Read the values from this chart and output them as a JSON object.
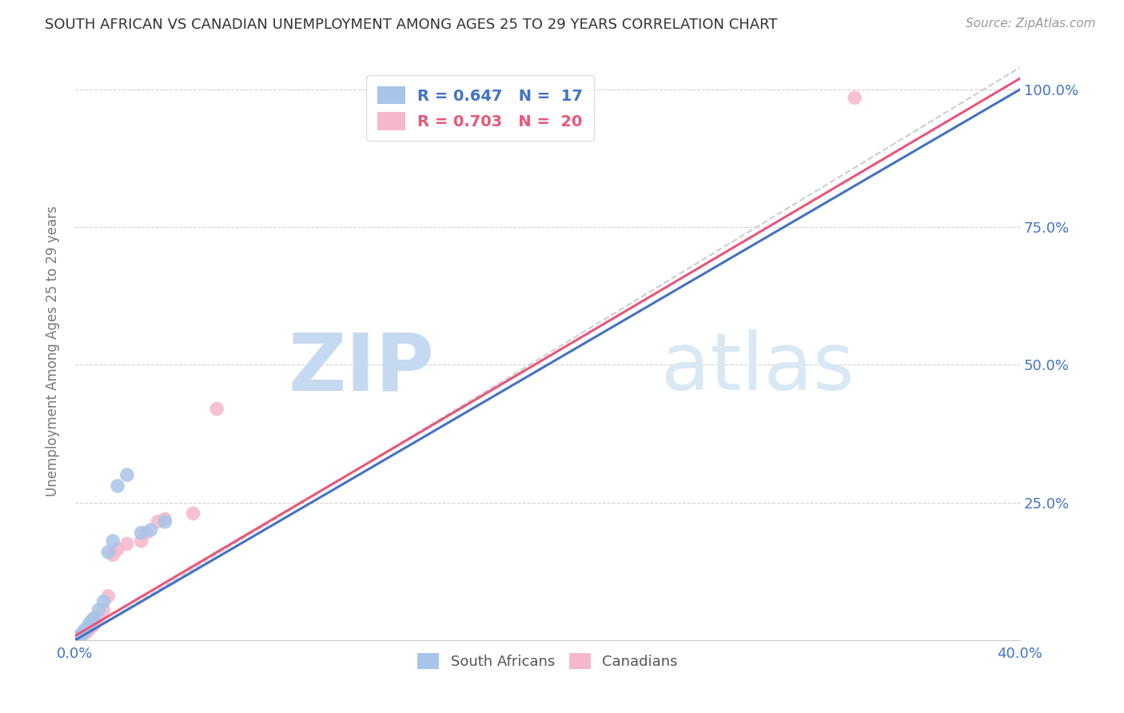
{
  "title": "SOUTH AFRICAN VS CANADIAN UNEMPLOYMENT AMONG AGES 25 TO 29 YEARS CORRELATION CHART",
  "source": "Source: ZipAtlas.com",
  "ylabel": "Unemployment Among Ages 25 to 29 years",
  "xlim": [
    0.0,
    0.4
  ],
  "ylim": [
    0.0,
    1.05
  ],
  "background_color": "#ffffff",
  "grid_color": "#cccccc",
  "title_color": "#333333",
  "watermark_text": "ZIPatlas",
  "watermark_color": "#dce9f5",
  "south_african_points": [
    [
      0.001,
      0.005
    ],
    [
      0.002,
      0.008
    ],
    [
      0.003,
      0.012
    ],
    [
      0.004,
      0.018
    ],
    [
      0.005,
      0.022
    ],
    [
      0.006,
      0.03
    ],
    [
      0.007,
      0.035
    ],
    [
      0.008,
      0.04
    ],
    [
      0.01,
      0.055
    ],
    [
      0.012,
      0.07
    ],
    [
      0.014,
      0.16
    ],
    [
      0.016,
      0.18
    ],
    [
      0.018,
      0.28
    ],
    [
      0.022,
      0.3
    ],
    [
      0.028,
      0.195
    ],
    [
      0.032,
      0.2
    ],
    [
      0.038,
      0.215
    ]
  ],
  "canadian_points": [
    [
      0.001,
      0.003
    ],
    [
      0.003,
      0.008
    ],
    [
      0.004,
      0.012
    ],
    [
      0.005,
      0.016
    ],
    [
      0.006,
      0.02
    ],
    [
      0.007,
      0.025
    ],
    [
      0.008,
      0.028
    ],
    [
      0.01,
      0.04
    ],
    [
      0.012,
      0.055
    ],
    [
      0.014,
      0.08
    ],
    [
      0.016,
      0.155
    ],
    [
      0.018,
      0.165
    ],
    [
      0.022,
      0.175
    ],
    [
      0.028,
      0.18
    ],
    [
      0.03,
      0.195
    ],
    [
      0.035,
      0.215
    ],
    [
      0.038,
      0.22
    ],
    [
      0.05,
      0.23
    ],
    [
      0.06,
      0.42
    ],
    [
      0.33,
      0.985
    ]
  ],
  "sa_line_x": [
    0.0,
    0.4
  ],
  "sa_line_y": [
    0.0,
    1.0
  ],
  "ca_line_x": [
    0.0,
    0.4
  ],
  "ca_line_y": [
    0.008,
    1.02
  ],
  "ref_line_x": [
    0.0,
    0.4
  ],
  "ref_line_y": [
    0.0,
    1.04
  ],
  "sa_color": "#a8c4e8",
  "ca_color": "#f5b8cb",
  "sa_line_color": "#4472c4",
  "ca_line_color": "#e8567a",
  "ref_line_color": "#c8c8c8",
  "tick_label_color": "#4472c4",
  "legend_sa_label": "R = 0.647   N =  17",
  "legend_ca_label": "R = 0.703   N =  20",
  "x_tick_positions": [
    0.0,
    0.05,
    0.1,
    0.15,
    0.2,
    0.25,
    0.3,
    0.35,
    0.4
  ],
  "x_tick_labels": [
    "0.0%",
    "",
    "",
    "",
    "",
    "",
    "",
    "",
    "40.0%"
  ],
  "y_tick_positions": [
    0.0,
    0.25,
    0.5,
    0.75,
    1.0
  ],
  "y_tick_labels_right": [
    "",
    "25.0%",
    "50.0%",
    "75.0%",
    "100.0%"
  ]
}
